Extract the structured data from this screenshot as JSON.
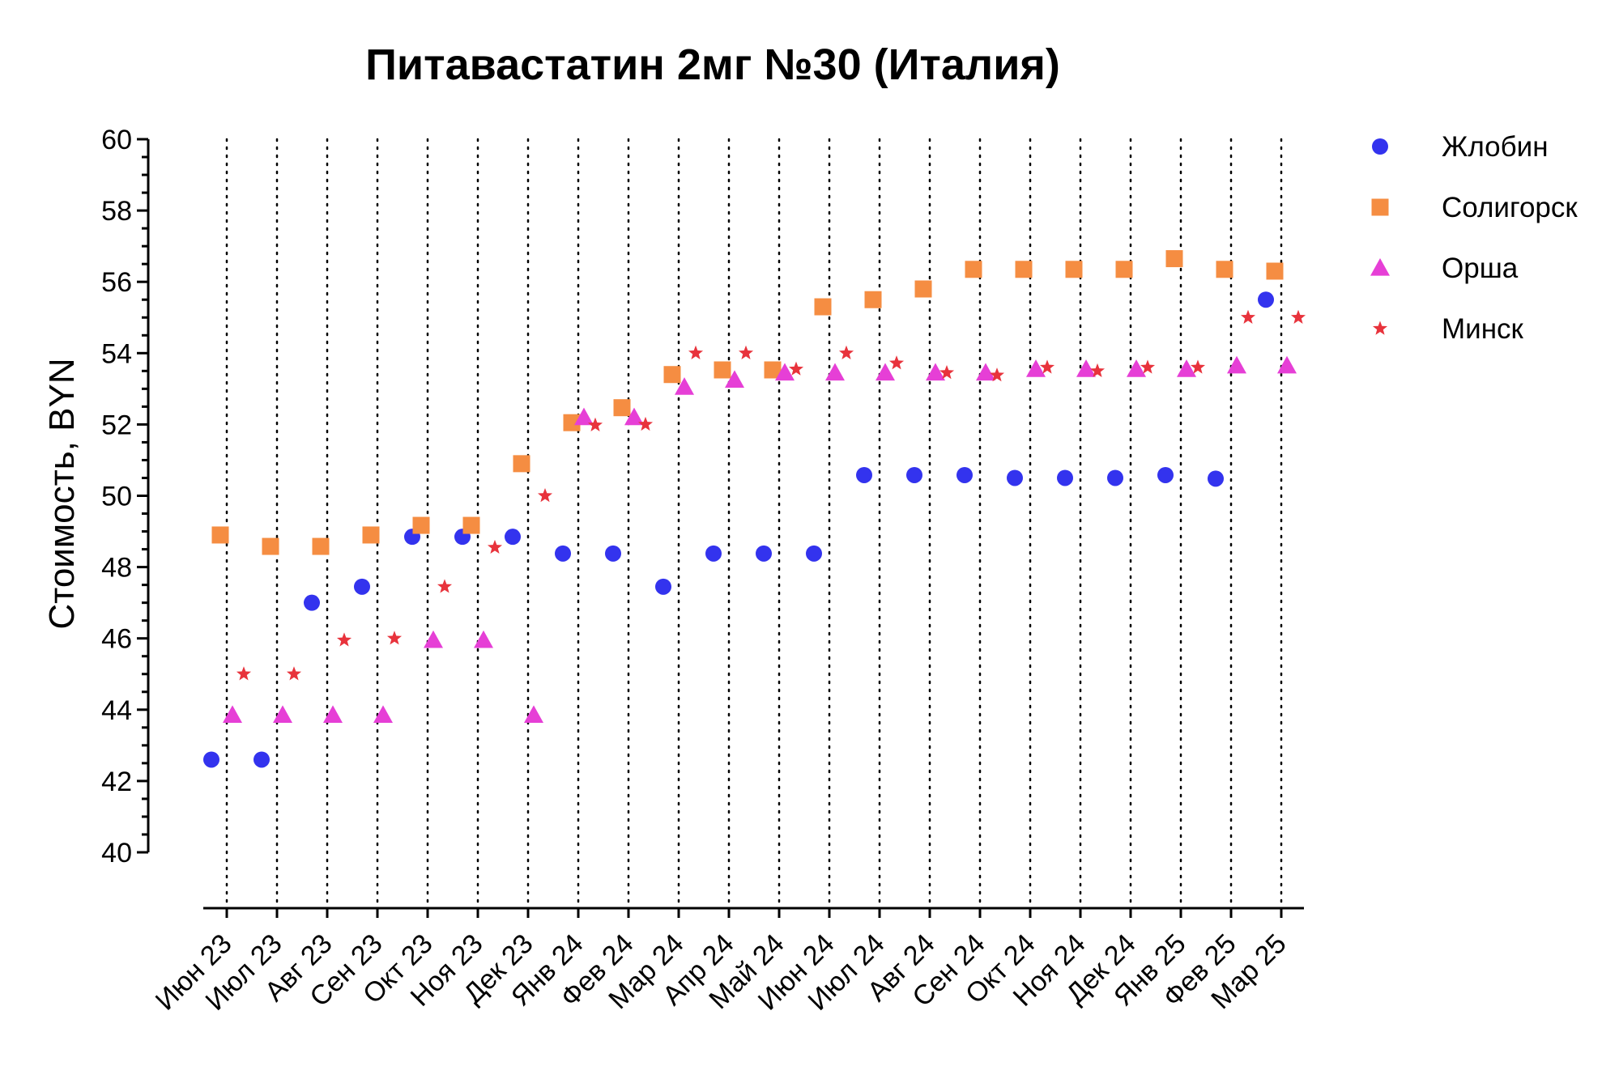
{
  "chart_data": {
    "type": "scatter",
    "title": "Питавастатин 2мг №30 (Италия)",
    "xlabel": "",
    "ylabel": "Стоимость, BYN",
    "ylim": [
      40,
      60
    ],
    "yticks": [
      "40",
      "42",
      "44",
      "46",
      "48",
      "50",
      "52",
      "54",
      "56",
      "58",
      "60"
    ],
    "grid": "vertical-dotted",
    "legend_position": "top-right",
    "categories": [
      "Июн 23",
      "Июл 23",
      "Авг 23",
      "Сен 23",
      "Окт 23",
      "Ноя 23",
      "Дек 23",
      "Янв 24",
      "Фев 24",
      "Мар 24",
      "Апр 24",
      "Май 24",
      "Июн 24",
      "Июл 24",
      "Авг 24",
      "Сен 24",
      "Окт 24",
      "Ноя 24",
      "Дек 24",
      "Янв 25",
      "Фев 25",
      "Мар 25"
    ],
    "series": [
      {
        "name": "Жлобин",
        "marker": "circle",
        "color": "#3333ee",
        "values": [
          42.6,
          42.6,
          47.0,
          47.45,
          48.85,
          48.85,
          48.85,
          48.38,
          48.38,
          47.45,
          48.38,
          48.38,
          48.38,
          50.58,
          50.58,
          50.58,
          50.5,
          50.5,
          50.5,
          50.58,
          50.48,
          55.5
        ]
      },
      {
        "name": "Солигорск",
        "marker": "square",
        "color": "#f58d42",
        "values": [
          48.9,
          48.58,
          48.58,
          48.9,
          49.17,
          49.17,
          50.9,
          52.05,
          52.47,
          53.4,
          53.53,
          53.53,
          55.3,
          55.5,
          55.8,
          56.35,
          56.35,
          56.35,
          56.35,
          56.65,
          56.35,
          56.3
        ]
      },
      {
        "name": "Орша",
        "marker": "triangle",
        "color": "#e63fd6",
        "values": [
          43.85,
          43.85,
          43.85,
          43.85,
          45.95,
          45.95,
          43.85,
          52.2,
          52.2,
          53.05,
          53.25,
          53.45,
          53.45,
          53.45,
          53.45,
          53.45,
          53.55,
          53.55,
          53.55,
          53.55,
          53.65,
          53.65
        ]
      },
      {
        "name": "Минск",
        "marker": "star",
        "color": "#e8333c",
        "values": [
          45.0,
          45.0,
          45.95,
          46.0,
          47.45,
          48.55,
          50.0,
          51.98,
          52.0,
          54.0,
          54.0,
          53.55,
          54.0,
          53.72,
          53.45,
          53.38,
          53.6,
          53.5,
          53.6,
          53.6,
          55.0,
          55.0
        ]
      }
    ]
  }
}
